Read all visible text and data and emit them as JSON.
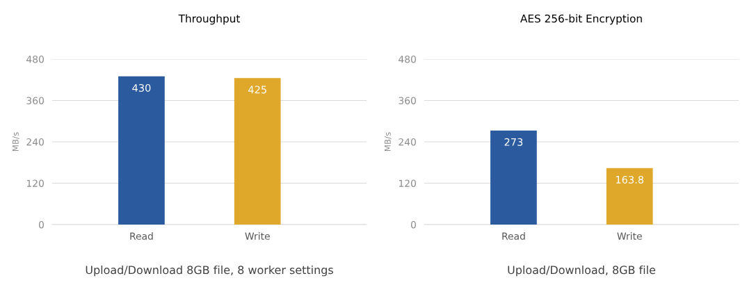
{
  "chart_data": [
    {
      "type": "bar",
      "title": "Throughput",
      "ylabel": "MB/s",
      "categories": [
        "Read",
        "Write"
      ],
      "values": [
        430,
        425
      ],
      "colors": [
        "#2b5b9e",
        "#e0a82a"
      ],
      "ylim": [
        0,
        480
      ],
      "yticks": [
        0,
        120,
        240,
        360,
        480
      ],
      "grid": "y",
      "data_labels": true,
      "legend": false,
      "annotations": [
        "Upload/Download 8GB file, 8 worker settings"
      ]
    },
    {
      "type": "bar",
      "title": "AES 256-bit Encryption",
      "ylabel": "MB/s",
      "categories": [
        "Read",
        "Write"
      ],
      "values": [
        273,
        163.8
      ],
      "colors": [
        "#2b5b9e",
        "#e0a82a"
      ],
      "ylim": [
        0,
        480
      ],
      "yticks": [
        0,
        120,
        240,
        360,
        480
      ],
      "grid": "y",
      "data_labels": true,
      "legend": false,
      "annotations": [
        "Upload/Download, 8GB file"
      ]
    }
  ]
}
